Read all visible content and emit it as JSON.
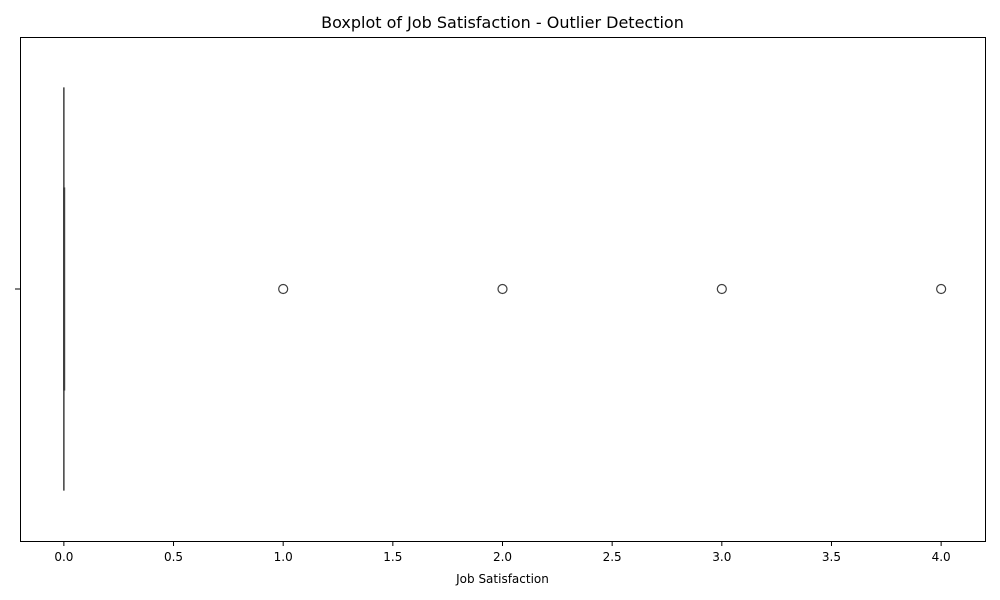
{
  "chart_data": {
    "type": "boxplot",
    "title": "Boxplot of Job Satisfaction - Outlier Detection",
    "xlabel": "Job Satisfaction",
    "ylabel": "",
    "xlim": [
      -0.2,
      4.2
    ],
    "x_ticks": [
      0.0,
      0.5,
      1.0,
      1.5,
      2.0,
      2.5,
      3.0,
      3.5,
      4.0
    ],
    "x_tick_labels": [
      "0.0",
      "0.5",
      "1.0",
      "1.5",
      "2.0",
      "2.5",
      "3.0",
      "3.5",
      "4.0"
    ],
    "orientation": "horizontal",
    "grid": false,
    "box": {
      "min": 0,
      "q1": 0,
      "median": 0,
      "q3": 0,
      "max": 0
    },
    "outliers": [
      1,
      2,
      3,
      4
    ],
    "colors": {
      "box_line": "#3f3f3f",
      "outlier_edge": "#3f3f3f",
      "axes": "#000000"
    }
  }
}
